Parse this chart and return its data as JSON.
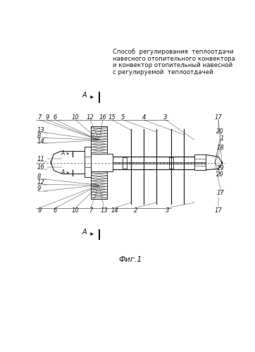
{
  "title_lines": [
    "Способ  регулирования  теплоотдачи",
    "навесного отопительного конвектора",
    "и конвектор отопительный навесной",
    "с регулируемой  теплоотдачей"
  ],
  "fig_label": "Фиг.1",
  "bg_color": "#ffffff",
  "line_color": "#1a1a1a",
  "drawing_color": "#2a2a2a",
  "light_color": "#555555"
}
